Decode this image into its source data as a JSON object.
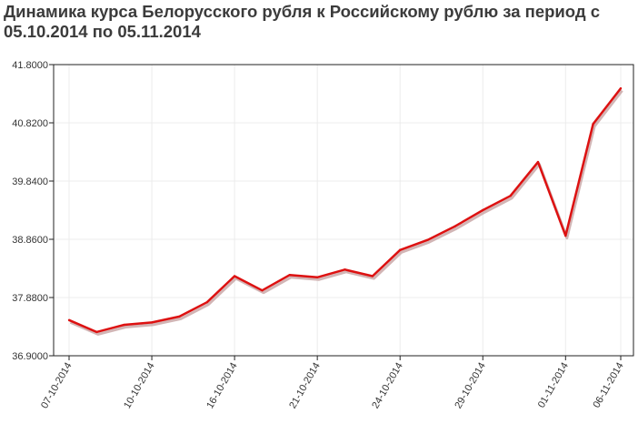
{
  "chart_data": {
    "type": "line",
    "title": "Динамика курса Белорусского рубля к Российскому рублю за период с 05.10.2014 по 05.11.2014",
    "xlabel": "",
    "ylabel": "",
    "ylim": [
      36.9,
      41.8
    ],
    "yticks": [
      "36.9000",
      "37.8800",
      "38.8600",
      "39.8400",
      "40.8200",
      "41.8000"
    ],
    "xtick_labels": [
      "07-10-2014",
      "10-10-2014",
      "16-10-2014",
      "21-10-2014",
      "24-10-2014",
      "29-10-2014",
      "01-11-2014",
      "06-11-2014"
    ],
    "xtick_index": [
      0,
      3,
      6,
      9,
      12,
      15,
      18,
      20
    ],
    "grid": true,
    "line_color": "#dd1111",
    "shadow_color": "#c7a3a3",
    "values": [
      37.5,
      37.3,
      37.42,
      37.46,
      37.56,
      37.8,
      38.24,
      38.0,
      38.26,
      38.22,
      38.35,
      38.24,
      38.68,
      38.85,
      39.08,
      39.35,
      39.59,
      40.16,
      38.92,
      40.8,
      41.4
    ]
  }
}
